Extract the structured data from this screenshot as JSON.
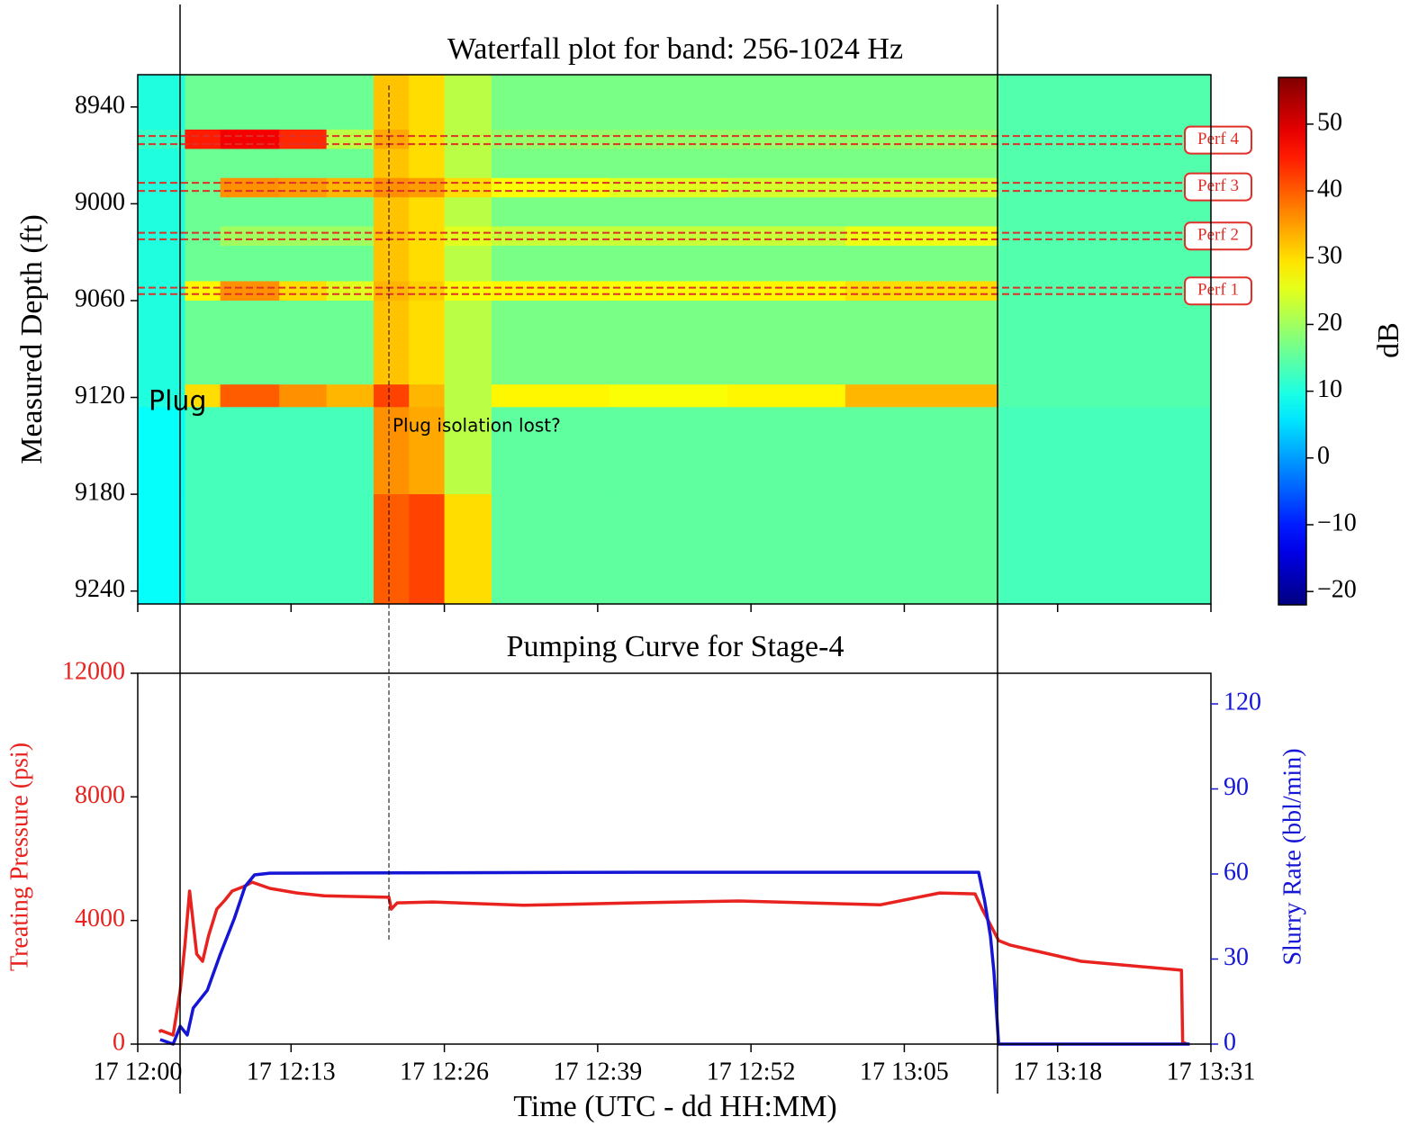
{
  "chart_data": [
    {
      "type": "heatmap",
      "title": "Waterfall plot for band: 256-1024 Hz",
      "y_label": "Measured Depth (ft)",
      "x": [
        "17 12:00",
        "17 12:04",
        "17 12:07",
        "17 12:12",
        "17 12:16",
        "17 12:20",
        "17 12:23",
        "17 12:26",
        "17 12:30",
        "17 12:40",
        "17 12:50",
        "17 13:00",
        "17 13:13",
        "17 13:31"
      ],
      "y": [
        8920,
        8954,
        8966,
        8984,
        8996,
        9014,
        9026,
        9048,
        9060,
        9112,
        9126,
        9180,
        9248
      ],
      "z": [
        [
          10,
          16,
          16,
          16,
          16,
          32,
          30,
          22,
          17,
          17,
          17,
          17,
          14
        ],
        [
          12,
          45,
          48,
          44,
          22,
          34,
          30,
          22,
          19,
          19,
          19,
          19,
          14
        ],
        [
          10,
          16,
          16,
          16,
          16,
          32,
          30,
          22,
          17,
          17,
          17,
          17,
          14
        ],
        [
          10,
          16,
          36,
          35,
          33,
          36,
          35,
          30,
          27,
          25,
          24,
          24,
          14
        ],
        [
          10,
          16,
          16,
          16,
          16,
          32,
          30,
          22,
          17,
          17,
          17,
          17,
          14
        ],
        [
          10,
          16,
          20,
          20,
          20,
          32,
          30,
          25,
          23,
          23,
          23,
          26,
          14
        ],
        [
          10,
          16,
          16,
          16,
          16,
          32,
          30,
          22,
          17,
          17,
          17,
          17,
          14
        ],
        [
          10,
          28,
          36,
          30,
          25,
          33,
          31,
          27,
          28,
          27,
          28,
          30,
          14
        ],
        [
          10,
          16,
          16,
          16,
          16,
          32,
          30,
          22,
          17,
          17,
          17,
          17,
          14
        ],
        [
          10,
          30,
          40,
          36,
          33,
          42,
          33,
          22,
          28,
          27,
          28,
          33,
          14
        ],
        [
          8,
          13,
          13,
          13,
          13,
          36,
          34,
          22,
          15,
          15,
          15,
          15,
          13
        ],
        [
          8,
          13,
          13,
          13,
          13,
          40,
          42,
          30,
          15,
          15,
          15,
          15,
          13
        ]
      ],
      "xlim": [
        "17 12:00",
        "17 13:31"
      ],
      "ylim": [
        8920,
        9248
      ],
      "y_inverted": true,
      "yticks": [
        8940,
        9000,
        9060,
        9120,
        9180,
        9240
      ],
      "colorbar": {
        "label": "dB",
        "colormap": "jet",
        "lim": [
          -22,
          57
        ],
        "ticks": [
          {
            "value": -20,
            "label": "−20"
          },
          {
            "value": -10,
            "label": "−10"
          },
          0,
          10,
          20,
          30,
          40,
          50
        ]
      },
      "perf_color": "#e0302a",
      "perfs": [
        {
          "label": "Perf 4",
          "depths": [
            8958,
            8963
          ]
        },
        {
          "label": "Perf 3",
          "depths": [
            8987,
            8992
          ]
        },
        {
          "label": "Perf 2",
          "depths": [
            9018,
            9022
          ]
        },
        {
          "label": "Perf 1",
          "depths": [
            9052,
            9056
          ]
        }
      ],
      "notes": [
        "Plug",
        "Plug isolation lost?"
      ]
    },
    {
      "type": "line",
      "title": "Pumping Curve for Stage-4",
      "x_label": "Time (UTC - dd HH:MM)",
      "y_label": "Treating Pressure (psi)",
      "y2_label": "Slurry Rate (bbl/min)",
      "xlim": [
        "17 12:00",
        "17 13:31"
      ],
      "xticks": [
        "17 12:00",
        "17 12:13",
        "17 12:26",
        "17 12:39",
        "17 12:52",
        "17 13:05",
        "17 13:18",
        "17 13:31"
      ],
      "ylim": [
        0,
        12000
      ],
      "yticks": [
        0,
        4000,
        8000,
        12000
      ],
      "y2lim": [
        0,
        130.8
      ],
      "y2ticks": [
        0,
        30,
        60,
        90,
        120
      ],
      "series": [
        {
          "color": "#e8231f",
          "x": [
            "17 12:01:48",
            "17 12:02:00",
            "17 12:03:00",
            "17 12:03:36",
            "17 12:04:00",
            "17 12:04:24",
            "17 12:05:00",
            "17 12:05:30",
            "17 12:06:00",
            "17 12:06:42",
            "17 12:07:24",
            "17 12:08:00",
            "17 12:09:00",
            "17 12:09:42",
            "17 12:11:12",
            "17 12:13:30",
            "17 12:15:48",
            "17 12:21:18",
            "17 12:21:30",
            "17 12:22:00",
            "17 12:25:00",
            "17 12:32:42",
            "17 12:42:00",
            "17 12:51:00",
            "17 13:03:00",
            "17 13:08:00",
            "17 13:11:00",
            "17 13:11:36",
            "17 13:12:24",
            "17 13:13:00",
            "17 13:14:00",
            "17 13:20:00",
            "17 13:28:30",
            "17 13:28:36",
            "17 13:29:00"
          ],
          "values": [
            400,
            437,
            291,
            1748,
            3204,
            4950,
            2913,
            2680,
            3500,
            4370,
            4660,
            4950,
            5100,
            5240,
            5040,
            4890,
            4800,
            4750,
            4370,
            4570,
            4600,
            4490,
            4570,
            4630,
            4510,
            4890,
            4860,
            4370,
            3790,
            3350,
            3200,
            2680,
            2390,
            58,
            0
          ]
        },
        {
          "color": "#1515d6",
          "axis": "y2",
          "x": [
            "17 12:01:54",
            "17 12:03:00",
            "17 12:03:36",
            "17 12:04:12",
            "17 12:04:42",
            "17 12:05:54",
            "17 12:07:00",
            "17 12:08:12",
            "17 12:09:06",
            "17 12:09:54",
            "17 12:11:12",
            "17 12:42:00",
            "17 13:11:18",
            "17 13:11:48",
            "17 13:12:18",
            "17 13:12:36",
            "17 13:13:00",
            "17 13:29:12"
          ],
          "values": [
            1.6,
            0,
            6.3,
            3.2,
            12.7,
            19,
            31.7,
            44.4,
            55.6,
            59.7,
            60.3,
            60.6,
            60.6,
            50.8,
            38.1,
            25.4,
            0,
            0
          ]
        }
      ]
    }
  ]
}
